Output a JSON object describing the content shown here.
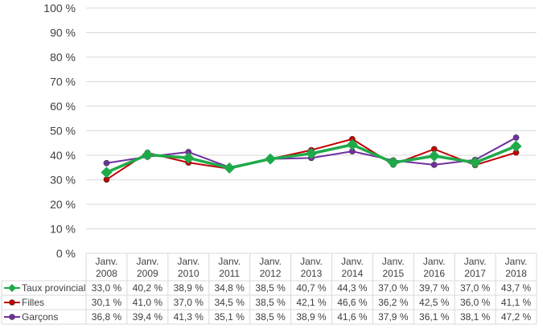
{
  "chart_data": {
    "type": "line",
    "title": "",
    "xlabel": "",
    "ylabel": "",
    "ylim": [
      0,
      100
    ],
    "y_ticks": [
      "0 %",
      "10 %",
      "20 %",
      "30 %",
      "40 %",
      "50 %",
      "60 %",
      "70 %",
      "80 %",
      "90 %",
      "100 %"
    ],
    "categories": [
      [
        "Janv.",
        "2008"
      ],
      [
        "Janv.",
        "2009"
      ],
      [
        "Janv.",
        "2010"
      ],
      [
        "Janv.",
        "2011"
      ],
      [
        "Janv.",
        "2012"
      ],
      [
        "Janv.",
        "2013"
      ],
      [
        "Janv.",
        "2014"
      ],
      [
        "Janv.",
        "2015"
      ],
      [
        "Janv.",
        "2016"
      ],
      [
        "Janv.",
        "2017"
      ],
      [
        "Janv.",
        "2018"
      ]
    ],
    "grid": true,
    "legend": "data-table",
    "series": [
      {
        "name": "Taux provincial",
        "color": "#1faa4a",
        "marker": "diamond",
        "values": [
          33.0,
          40.2,
          38.9,
          34.8,
          38.5,
          40.7,
          44.3,
          37.0,
          39.7,
          37.0,
          43.7
        ],
        "labels": [
          "33,0 %",
          "40,2 %",
          "38,9 %",
          "34,8 %",
          "38,5 %",
          "40,7 %",
          "44,3 %",
          "37,0 %",
          "39,7 %",
          "37,0 %",
          "43,7 %"
        ]
      },
      {
        "name": "Filles",
        "color": "#c00000",
        "marker": "circle",
        "values": [
          30.1,
          41.0,
          37.0,
          34.5,
          38.5,
          42.1,
          46.6,
          36.2,
          42.5,
          36.0,
          41.1
        ],
        "labels": [
          "30,1 %",
          "41,0 %",
          "37,0 %",
          "34,5 %",
          "38,5 %",
          "42,1 %",
          "46,6 %",
          "36,2 %",
          "42,5 %",
          "36,0 %",
          "41,1 %"
        ]
      },
      {
        "name": "Garçons",
        "color": "#7030a0",
        "marker": "circle",
        "values": [
          36.8,
          39.4,
          41.3,
          35.1,
          38.5,
          38.9,
          41.6,
          37.9,
          36.1,
          38.1,
          47.2
        ],
        "labels": [
          "36,8 %",
          "39,4 %",
          "41,3 %",
          "35,1 %",
          "38,5 %",
          "38,9 %",
          "41,6 %",
          "37,9 %",
          "36,1 %",
          "38,1 %",
          "47,2 %"
        ]
      }
    ]
  }
}
